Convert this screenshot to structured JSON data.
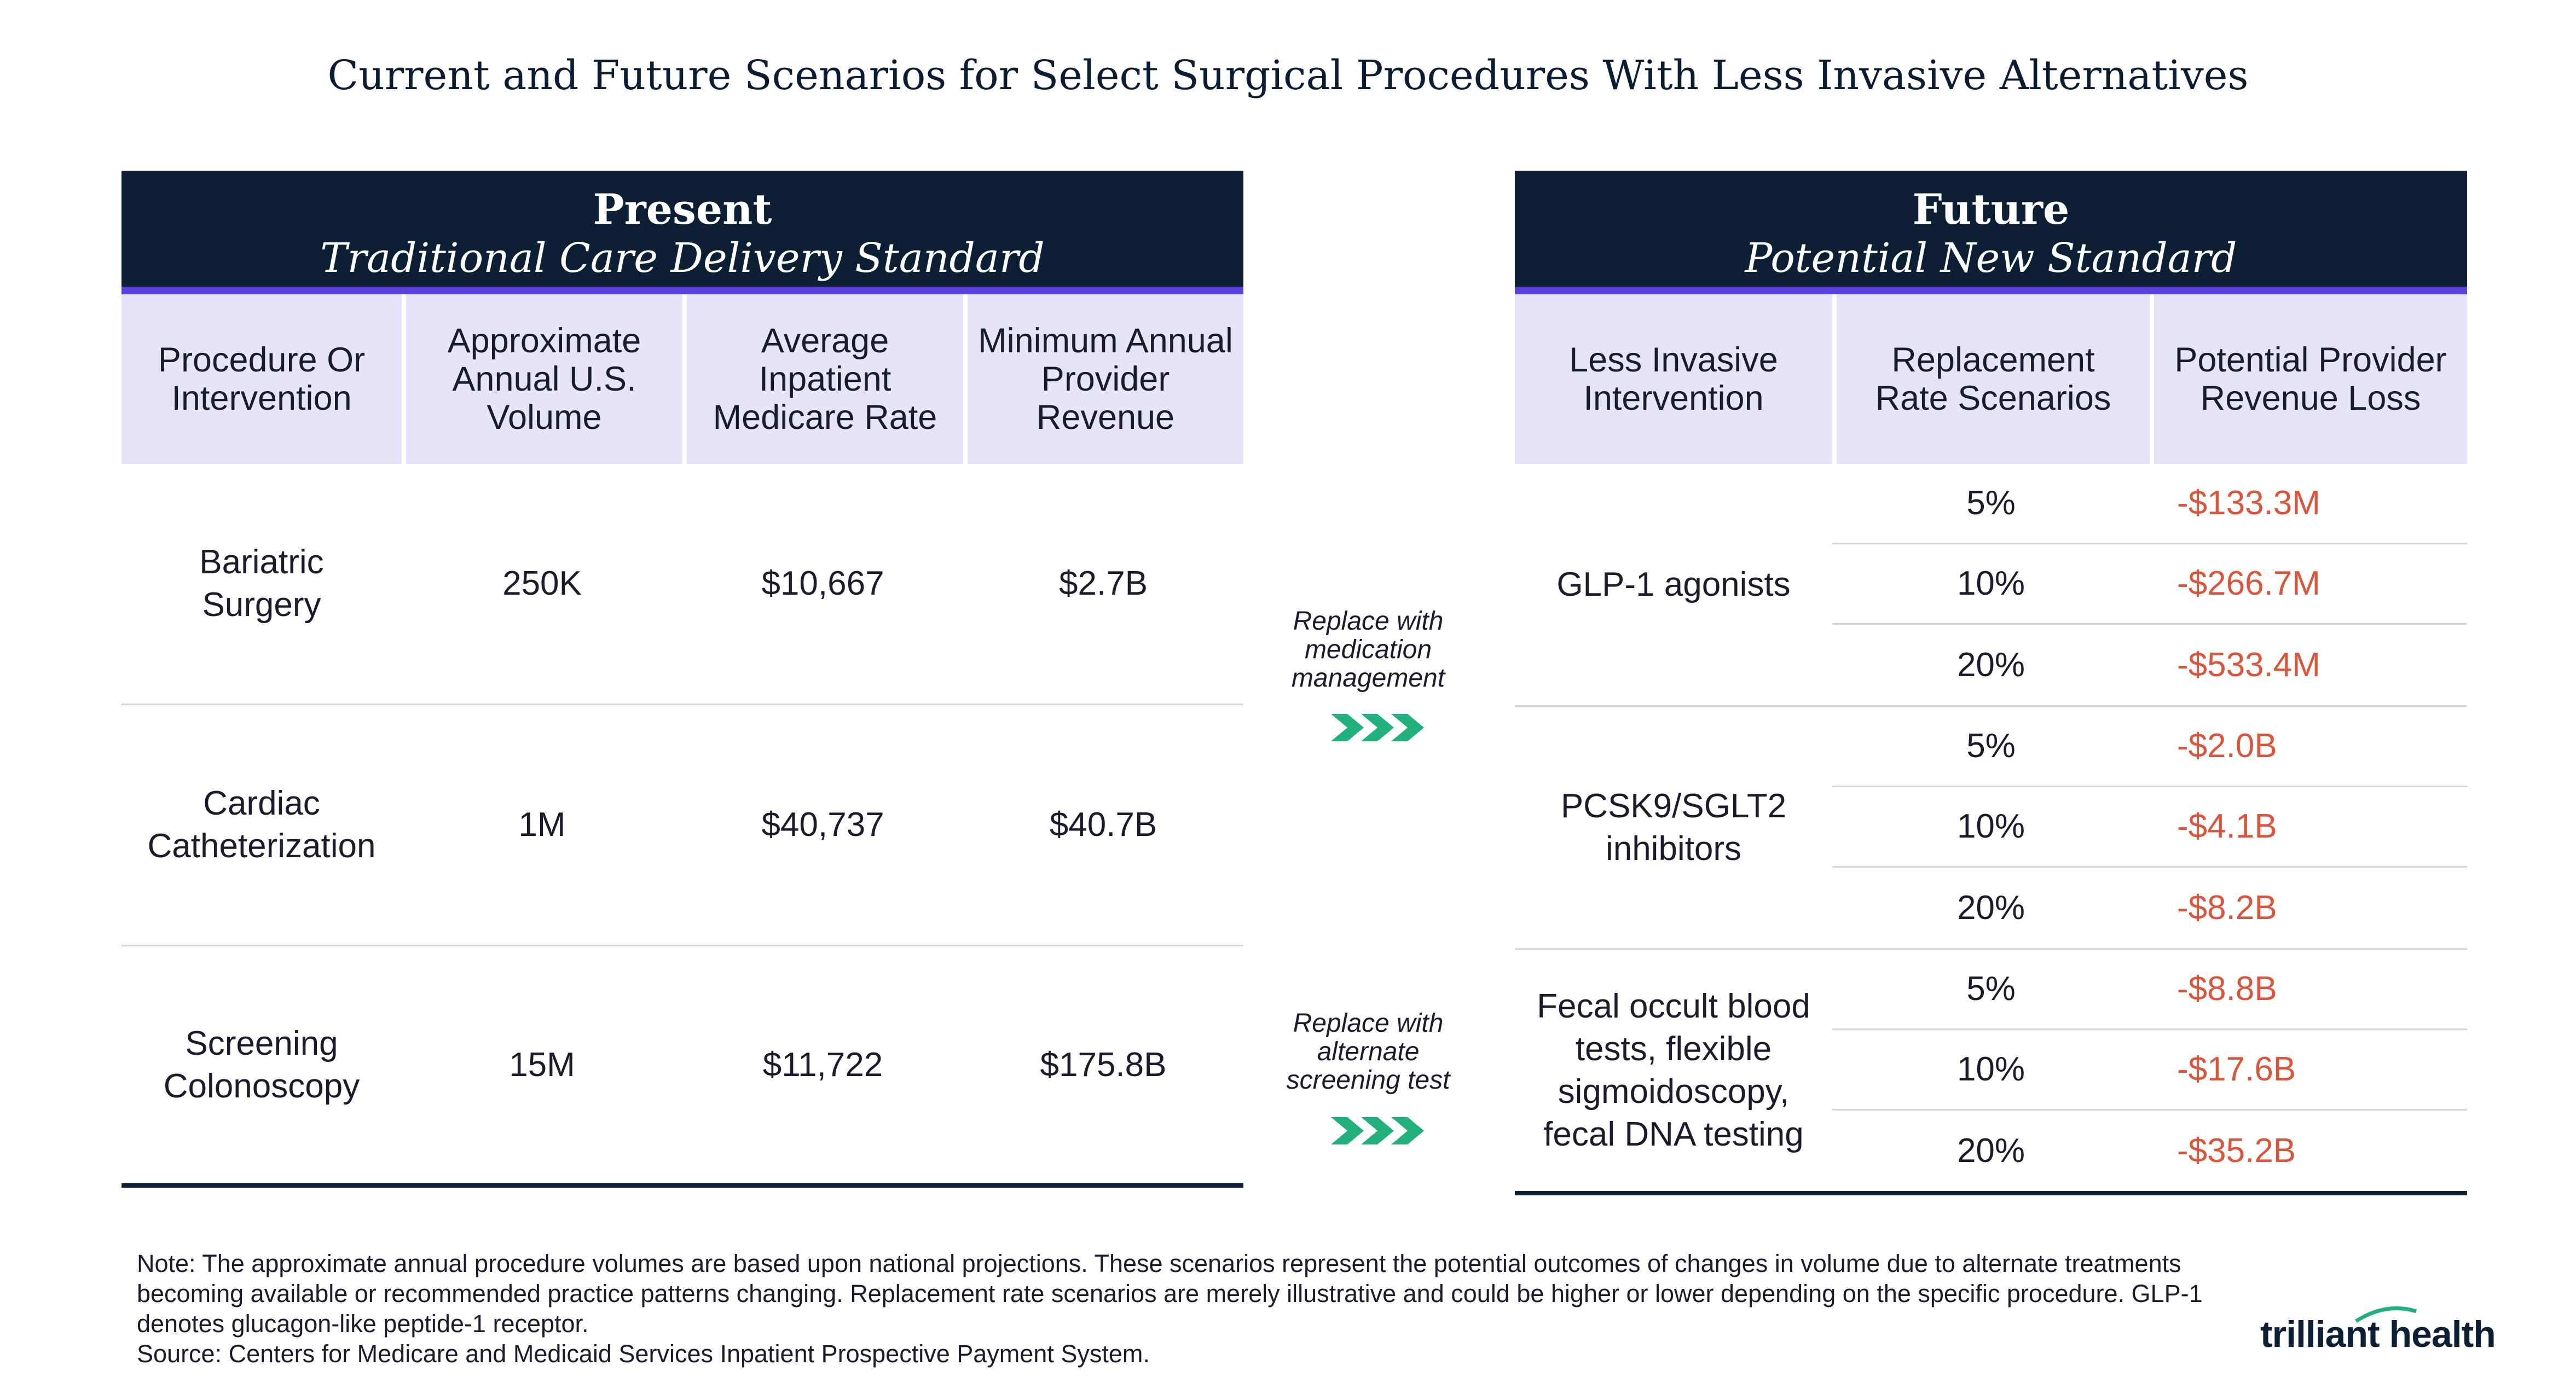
{
  "title": "Current and Future Scenarios for Select Surgical Procedures With Less Invasive Alternatives",
  "present": {
    "heading": "Present",
    "subheading": "Traditional Care Delivery Standard",
    "columns": [
      "Procedure Or Intervention",
      "Approximate Annual U.S. Volume",
      "Average Inpatient Medicare Rate",
      "Minimum Annual Provider Revenue"
    ],
    "rows": [
      {
        "procedure": "Bariatric Surgery",
        "volume": "250K",
        "rate": "$10,667",
        "revenue": "$2.7B"
      },
      {
        "procedure": "Cardiac Catheterization",
        "volume": "1M",
        "rate": "$40,737",
        "revenue": "$40.7B"
      },
      {
        "procedure": "Screening Colonoscopy",
        "volume": "15M",
        "rate": "$11,722",
        "revenue": "$175.8B"
      }
    ]
  },
  "middle": {
    "label1": "Replace with medication management",
    "label2": "Replace with alternate screening test"
  },
  "future": {
    "heading": "Future",
    "subheading": "Potential New Standard",
    "columns": [
      "Less Invasive Intervention",
      "Replacement Rate Scenarios",
      "Potential Provider Revenue Loss"
    ],
    "groups": [
      {
        "intervention": "GLP-1 agonists",
        "scenarios": [
          {
            "rate": "5%",
            "loss": "-$133.3M"
          },
          {
            "rate": "10%",
            "loss": "-$266.7M"
          },
          {
            "rate": "20%",
            "loss": "-$533.4M"
          }
        ]
      },
      {
        "intervention": "PCSK9/SGLT2 inhibitors",
        "scenarios": [
          {
            "rate": "5%",
            "loss": "-$2.0B"
          },
          {
            "rate": "10%",
            "loss": "-$4.1B"
          },
          {
            "rate": "20%",
            "loss": "-$8.2B"
          }
        ]
      },
      {
        "intervention": "Fecal occult blood tests, flexible sigmoidoscopy, fecal DNA testing",
        "scenarios": [
          {
            "rate": "5%",
            "loss": "-$8.8B"
          },
          {
            "rate": "10%",
            "loss": "-$17.6B"
          },
          {
            "rate": "20%",
            "loss": "-$35.2B"
          }
        ]
      }
    ]
  },
  "footnote": {
    "note": "Note: The approximate annual procedure volumes are based upon national projections. These scenarios represent the potential outcomes of changes in volume due to alternate treatments becoming available or recommended practice patterns changing. Replacement rate scenarios are merely illustrative and could be higher or lower depending on the specific procedure. GLP-1 denotes glucagon-like peptide-1 receptor.",
    "source": "Source: Centers for Medicare and Medicaid Services Inpatient Prospective Payment System."
  },
  "logo": "trilliant health",
  "colors": {
    "navy": "#0c1f35",
    "accent": "#5b3fd8",
    "header_bg": "#e6e4fb",
    "loss": "#d9553b",
    "arrow": "#22b07d"
  }
}
